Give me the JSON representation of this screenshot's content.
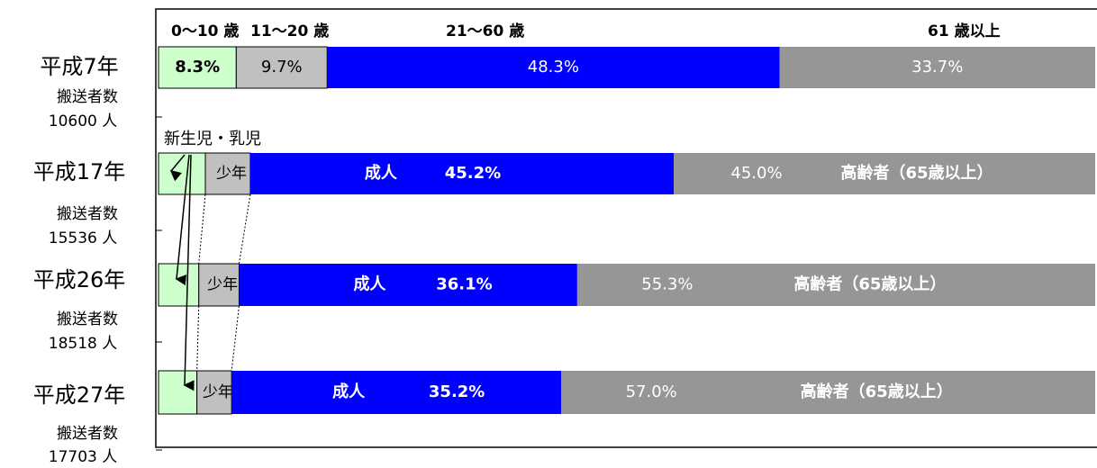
{
  "chart_data": {
    "type": "stacked-bar-h",
    "headers": [
      "0〜10 歳",
      "11〜20 歳",
      "21〜60 歳",
      "61 歳以上"
    ],
    "annotation": "新生児・乳児",
    "xlim": [
      0,
      100
    ],
    "colors": [
      "#ccffcc",
      "#c0c0c0",
      "#0000ff",
      "#969696"
    ],
    "rows": [
      {
        "label": "平成7年",
        "sublabel": "搬送者数",
        "count": "10600 人",
        "segments": [
          {
            "value": 8.3,
            "value_label": "8.3%"
          },
          {
            "value": 9.7,
            "value_label": "9.7%"
          },
          {
            "value": 48.3,
            "value_label": "48.3%"
          },
          {
            "value": 33.7,
            "value_label": "33.7%"
          }
        ]
      },
      {
        "label": "平成17年",
        "sublabel": "搬送者数",
        "count": "15536 人",
        "segments": [
          {
            "value": 5.0
          },
          {
            "value": 4.8,
            "name": "少年"
          },
          {
            "value": 45.2,
            "value_label": "45.2%",
            "name": "成人"
          },
          {
            "value": 45.0,
            "value_label": "45.0%",
            "name": "高齢者（65歳以上）"
          }
        ]
      },
      {
        "label": "平成26年",
        "sublabel": "搬送者数",
        "count": "18518 人",
        "segments": [
          {
            "value": 4.3
          },
          {
            "value": 4.3,
            "name": "少年"
          },
          {
            "value": 36.1,
            "value_label": "36.1%",
            "name": "成人"
          },
          {
            "value": 55.3,
            "value_label": "55.3%",
            "name": "高齢者（65歳以上）"
          }
        ]
      },
      {
        "label": "平成27年",
        "sublabel": "搬送者数",
        "count": "17703 人",
        "segments": [
          {
            "value": 4.1
          },
          {
            "value": 3.7,
            "name": "少年"
          },
          {
            "value": 35.2,
            "value_label": "35.2%",
            "name": "成人"
          },
          {
            "value": 57.0,
            "value_label": "57.0%",
            "name": "高齢者（65歳以上）"
          }
        ]
      }
    ]
  }
}
